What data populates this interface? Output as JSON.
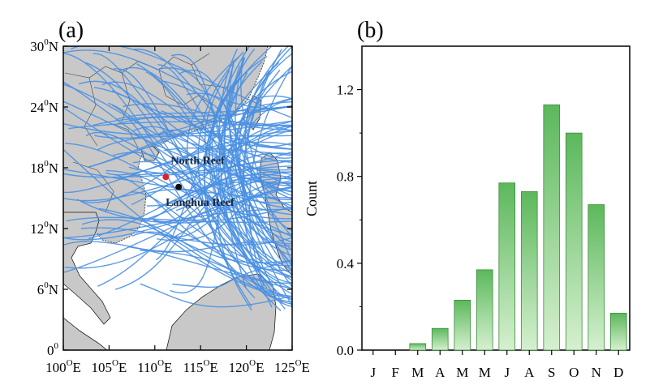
{
  "panel_a": {
    "label": "(a)",
    "lat_ticks": [
      {
        "value": 0,
        "label": "0",
        "sup": "0"
      },
      {
        "value": 6,
        "label": "6",
        "sup": "0",
        "suffix": "N"
      },
      {
        "value": 12,
        "label": "12",
        "sup": "0",
        "suffix": "N"
      },
      {
        "value": 18,
        "label": "18",
        "sup": "0",
        "suffix": "N"
      },
      {
        "value": 24,
        "label": "24",
        "sup": "0",
        "suffix": "N"
      },
      {
        "value": 30,
        "label": "30",
        "sup": "0",
        "suffix": "N"
      }
    ],
    "lon_ticks": [
      {
        "value": 100,
        "label": "100",
        "sup": "O",
        "suffix": "E"
      },
      {
        "value": 105,
        "label": "105",
        "sup": "O",
        "suffix": "E"
      },
      {
        "value": 110,
        "label": "110",
        "sup": "O",
        "suffix": "E"
      },
      {
        "value": 115,
        "label": "115",
        "sup": "O",
        "suffix": "E"
      },
      {
        "value": 120,
        "label": "120",
        "sup": "O",
        "suffix": "E"
      },
      {
        "value": 125,
        "label": "125",
        "sup": "O",
        "suffix": "E"
      }
    ],
    "sites": [
      {
        "name": "North Reef",
        "lon": 111.2,
        "lat": 17.1,
        "color": "#d9242b"
      },
      {
        "name": "Langhua Reef",
        "lon": 112.6,
        "lat": 16.1,
        "color": "#111111"
      }
    ],
    "colors": {
      "track": "#4a90e2",
      "land": "#c8c8c8",
      "sea": "#ffffff",
      "coast": "#222222"
    }
  },
  "chart_data": {
    "type": "bar",
    "label": "(b)",
    "ylabel": "Count",
    "categories": [
      "J",
      "F",
      "M",
      "A",
      "M",
      "M",
      "J",
      "A",
      "S",
      "O",
      "N",
      "D"
    ],
    "values": [
      0,
      0,
      0.03,
      0.1,
      0.23,
      0.37,
      0.77,
      0.73,
      1.13,
      1.0,
      0.67,
      0.17
    ],
    "ylim": [
      0,
      1.4
    ],
    "yticks": [
      0.0,
      0.4,
      0.8,
      1.2
    ],
    "ytick_labels": [
      "0.0",
      "0.4",
      "0.8",
      "1.2"
    ],
    "colors": {
      "bar_top": "#5cb85c",
      "bar_bottom": "#d5f0cf",
      "bar_edge": "#3a8d3a"
    }
  }
}
